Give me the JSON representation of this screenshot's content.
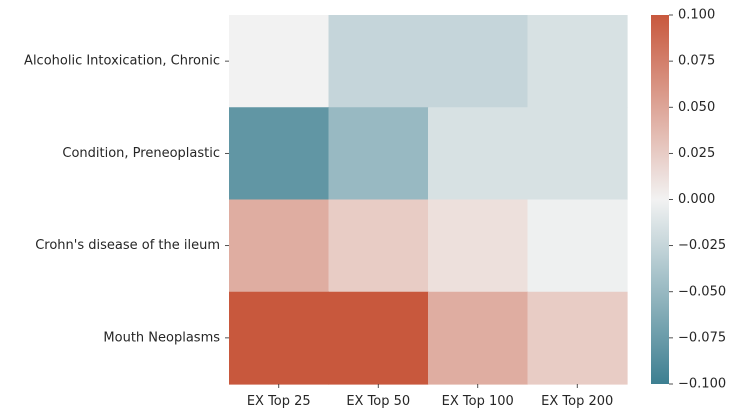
{
  "chart_data": {
    "type": "heatmap",
    "rows": [
      "Alcoholic Intoxication, Chronic",
      "Condition, Preneoplastic",
      "Crohn's disease of the ileum",
      "Mouth Neoplasms"
    ],
    "columns": [
      "EX Top 25",
      "EX Top 50",
      "EX Top 100",
      "EX Top 200"
    ],
    "values": [
      [
        0.0,
        -0.025,
        -0.025,
        -0.015
      ],
      [
        -0.08,
        -0.05,
        -0.015,
        -0.015
      ],
      [
        0.045,
        0.025,
        0.012,
        -0.002
      ],
      [
        0.1,
        0.1,
        0.045,
        0.025
      ]
    ],
    "colorbar": {
      "vmin": -0.1,
      "vmax": 0.1,
      "ticks": [
        "0.100",
        "0.075",
        "0.050",
        "0.025",
        "0.000",
        "−0.025",
        "−0.050",
        "−0.075",
        "−0.100"
      ],
      "tick_values": [
        0.1,
        0.075,
        0.05,
        0.025,
        0.0,
        -0.025,
        -0.05,
        -0.075,
        -0.1
      ],
      "colors": {
        "low": "#3d7f91",
        "mid": "#f2f2f2",
        "high": "#c8583d"
      }
    }
  }
}
